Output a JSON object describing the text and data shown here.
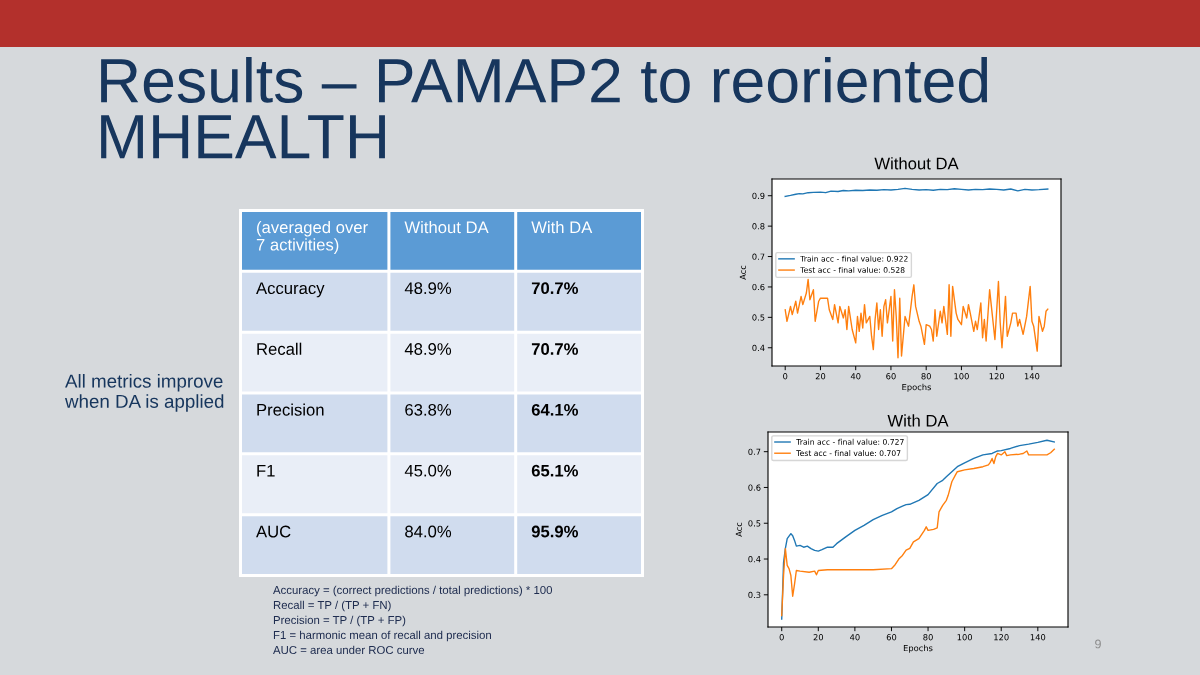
{
  "chart_data": [
    {
      "type": "other",
      "title": "Results – PAMAP2 to reoriented MHEALTH",
      "ylabel": "(averaged over 7 activities)",
      "categories": [
        "Without DA",
        "With DA"
      ],
      "y_categories": [
        "Accuracy",
        "Recall",
        "Precision",
        "F1",
        "AUC"
      ],
      "cell_labels": [
        [
          "48.9%",
          "70.7%"
        ],
        [
          "48.9%",
          "70.7%"
        ],
        [
          "63.8%",
          "64.1%"
        ],
        [
          "45.0%",
          "65.1%"
        ],
        [
          "84.0%",
          "95.9%"
        ]
      ],
      "annotations": [
        "All metrics improve when DA is applied",
        "Accuracy = (correct predictions / total predictions) * 100",
        "Recall = TP / (TP + FN)",
        "Precision = TP / (TP + FP)",
        "F1 = harmonic mean of recall and precision",
        "AUC = area under ROC curve",
        "9"
      ]
    },
    {
      "type": "line",
      "title": "Without DA",
      "xlabel": "Epochs",
      "ylabel": "Acc",
      "xlim": [
        -7.5,
        156.5
      ],
      "xticks": [
        0,
        20,
        40,
        60,
        80,
        100,
        120,
        140
      ],
      "ylim": [
        0.34,
        0.955
      ],
      "yticks": [
        0.4,
        0.5,
        0.6,
        0.7,
        0.8,
        0.9
      ],
      "legend": "left",
      "series": [
        {
          "name": "Train acc - final value: 0.922",
          "color": "#1f77b4",
          "x": [
            0,
            3,
            6,
            8,
            10,
            13,
            16,
            20,
            23,
            26,
            30,
            33,
            36,
            40,
            44,
            48,
            52,
            56,
            60,
            64,
            68,
            72,
            76,
            80,
            84,
            88,
            92,
            96,
            100,
            104,
            108,
            112,
            116,
            120,
            124,
            128,
            132,
            136,
            140,
            144,
            149
          ],
          "values": [
            0.898,
            0.901,
            0.905,
            0.907,
            0.906,
            0.91,
            0.911,
            0.912,
            0.91,
            0.915,
            0.914,
            0.917,
            0.916,
            0.918,
            0.917,
            0.919,
            0.918,
            0.92,
            0.919,
            0.921,
            0.924,
            0.921,
            0.919,
            0.92,
            0.918,
            0.921,
            0.92,
            0.923,
            0.921,
            0.919,
            0.921,
            0.92,
            0.922,
            0.921,
            0.919,
            0.922,
            0.916,
            0.921,
            0.919,
            0.92,
            0.922
          ]
        },
        {
          "name": "Test acc - final value: 0.528",
          "color": "#ff7f0e",
          "x": [
            0,
            1,
            3,
            4,
            6,
            7,
            9,
            10,
            12,
            13,
            14,
            16,
            17,
            19,
            20,
            24,
            25,
            27,
            28,
            30,
            31,
            33,
            34,
            35,
            36,
            38,
            40,
            41,
            42,
            43,
            44,
            45,
            46,
            48,
            49,
            50,
            51,
            52,
            53,
            54,
            55,
            56,
            57,
            58,
            60,
            61,
            62,
            63,
            64,
            65,
            66,
            68,
            70,
            72,
            73,
            74,
            76,
            77,
            79,
            80,
            82,
            83,
            84,
            85,
            86,
            88,
            89,
            90,
            92,
            93,
            94,
            95,
            97,
            98,
            100,
            101,
            103,
            104,
            105,
            107,
            108,
            109,
            111,
            112,
            113,
            114,
            116,
            117,
            119,
            121,
            122,
            123,
            125,
            126,
            128,
            129,
            131,
            132,
            133,
            135,
            137,
            139,
            140,
            141,
            143,
            144,
            146,
            147,
            148,
            149
          ],
          "values": [
            0.525,
            0.487,
            0.536,
            0.509,
            0.553,
            0.514,
            0.569,
            0.542,
            0.58,
            0.625,
            0.558,
            0.591,
            0.487,
            0.553,
            0.563,
            0.563,
            0.525,
            0.493,
            0.542,
            0.482,
            0.536,
            0.498,
            0.525,
            0.46,
            0.536,
            0.46,
            0.416,
            0.503,
            0.454,
            0.514,
            0.465,
            0.542,
            0.482,
            0.503,
            0.438,
            0.394,
            0.493,
            0.547,
            0.46,
            0.525,
            0.438,
            0.536,
            0.558,
            0.482,
            0.569,
            0.422,
            0.591,
            0.503,
            0.367,
            0.563,
            0.373,
            0.503,
            0.471,
            0.569,
            0.607,
            0.536,
            0.487,
            0.471,
            0.411,
            0.476,
            0.471,
            0.46,
            0.422,
            0.525,
            0.438,
            0.52,
            0.482,
            0.536,
            0.444,
            0.607,
            0.438,
            0.602,
            0.514,
            0.493,
            0.476,
            0.536,
            0.498,
            0.542,
            0.514,
            0.454,
            0.487,
            0.46,
            0.547,
            0.433,
            0.493,
            0.422,
            0.591,
            0.536,
            0.427,
            0.618,
            0.482,
            0.4,
            0.569,
            0.438,
            0.482,
            0.514,
            0.514,
            0.471,
            0.493,
            0.444,
            0.503,
            0.602,
            0.487,
            0.471,
            0.389,
            0.503,
            0.454,
            0.471,
            0.52,
            0.527
          ]
        }
      ]
    },
    {
      "type": "line",
      "title": "With DA",
      "xlabel": "Epochs",
      "ylabel": "Acc",
      "xlim": [
        -7.5,
        156.5
      ],
      "xticks": [
        0,
        20,
        40,
        60,
        80,
        100,
        120,
        140
      ],
      "ylim": [
        0.21,
        0.755
      ],
      "yticks": [
        0.3,
        0.4,
        0.5,
        0.6,
        0.7
      ],
      "legend": "top left",
      "series": [
        {
          "name": "Train acc - final value: 0.727",
          "color": "#1f77b4",
          "x": [
            0,
            1,
            2,
            3,
            5,
            6,
            7,
            8,
            10,
            12,
            14,
            16,
            18,
            20,
            22,
            25,
            28,
            30,
            35,
            40,
            45,
            50,
            55,
            60,
            63,
            66,
            68,
            70,
            75,
            80,
            85,
            88,
            90,
            93,
            96,
            100,
            105,
            110,
            115,
            118,
            120,
            125,
            130,
            135,
            140,
            145,
            149
          ],
          "values": [
            0.232,
            0.39,
            0.43,
            0.457,
            0.471,
            0.465,
            0.452,
            0.436,
            0.438,
            0.433,
            0.436,
            0.429,
            0.424,
            0.422,
            0.426,
            0.433,
            0.433,
            0.443,
            0.462,
            0.48,
            0.494,
            0.51,
            0.522,
            0.532,
            0.541,
            0.548,
            0.552,
            0.553,
            0.564,
            0.58,
            0.611,
            0.62,
            0.63,
            0.644,
            0.658,
            0.669,
            0.681,
            0.691,
            0.695,
            0.702,
            0.703,
            0.709,
            0.717,
            0.721,
            0.726,
            0.732,
            0.727
          ]
        },
        {
          "name": "Test acc - final value: 0.707",
          "color": "#ff7f0e",
          "x": [
            0,
            1,
            2,
            3,
            4,
            5,
            6,
            7,
            8,
            10,
            15,
            18,
            19,
            20,
            25,
            30,
            40,
            50,
            60,
            62,
            64,
            66,
            68,
            70,
            72,
            75,
            78,
            79,
            80,
            83,
            85,
            86,
            88,
            90,
            91,
            93,
            95,
            96,
            100,
            105,
            110,
            113,
            114,
            115,
            116,
            117,
            118,
            120,
            122,
            123,
            125,
            130,
            132,
            134,
            135,
            137,
            140,
            145,
            147,
            149
          ],
          "values": [
            0.242,
            0.354,
            0.429,
            0.382,
            0.373,
            0.354,
            0.296,
            0.33,
            0.368,
            0.366,
            0.363,
            0.366,
            0.356,
            0.368,
            0.37,
            0.37,
            0.37,
            0.37,
            0.373,
            0.384,
            0.4,
            0.41,
            0.425,
            0.43,
            0.448,
            0.457,
            0.48,
            0.49,
            0.48,
            0.483,
            0.487,
            0.532,
            0.55,
            0.564,
            0.578,
            0.616,
            0.635,
            0.644,
            0.649,
            0.653,
            0.658,
            0.663,
            0.67,
            0.681,
            0.667,
            0.686,
            0.695,
            0.691,
            0.7,
            0.689,
            0.691,
            0.693,
            0.695,
            0.702,
            0.691,
            0.691,
            0.691,
            0.691,
            0.697,
            0.707
          ]
        }
      ]
    }
  ]
}
